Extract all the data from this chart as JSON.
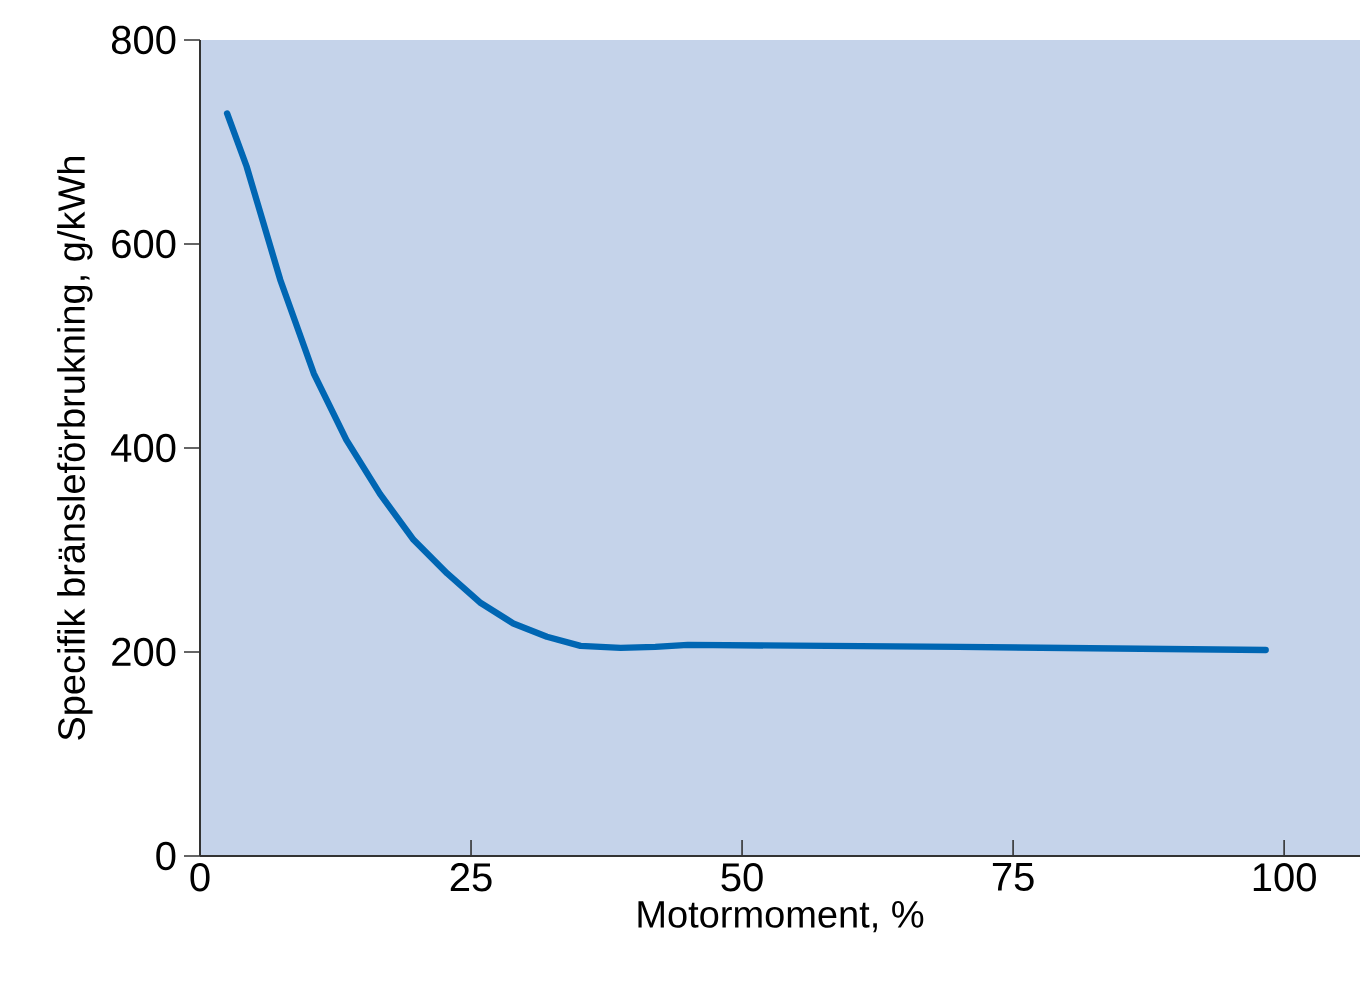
{
  "chart_data": {
    "type": "line",
    "xlabel": "Motormoment, %",
    "ylabel": "Specifik bränsleförbrukning, g/kWh",
    "xlim": [
      0,
      107
    ],
    "ylim": [
      0,
      800
    ],
    "xticks": [
      0,
      25,
      50,
      75,
      100
    ],
    "yticks": [
      0,
      200,
      400,
      600,
      800
    ],
    "grid": false,
    "marker": "none",
    "line_style": "solid",
    "series": [
      {
        "color": "#0066b3",
        "x": [
          2.5,
          4.3,
          7.4,
          10.5,
          13.5,
          16.6,
          19.7,
          22.8,
          25.9,
          28.9,
          32.0,
          35.1,
          38.8,
          42,
          45,
          70,
          98.3
        ],
        "values": [
          728,
          676,
          565,
          473,
          408,
          355,
          310,
          277,
          248,
          228,
          215,
          206,
          204,
          205,
          207,
          205,
          202
        ]
      }
    ]
  }
}
